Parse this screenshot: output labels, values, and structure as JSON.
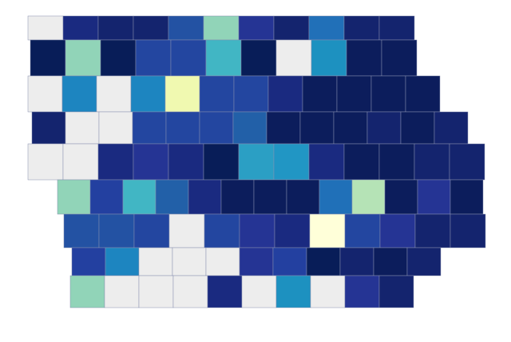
{
  "map": {
    "counties": {
      "rows": [
        [
          "#ededed",
          "#1a2a80",
          "#14246e",
          "#14246e",
          "#2352a3",
          "#91d4b8",
          "#253494",
          "#14246e",
          "#2170b8",
          "#14246e",
          "#14246e"
        ],
        [
          "#081d58",
          "#91d4b8",
          "#081d58",
          "#2346a0",
          "#2346a0",
          "#41b6c4",
          "#081d58",
          "#ededed",
          "#1d91c0",
          "#0c1d5c",
          "#0c1d5c"
        ],
        [
          "#ededed",
          "#1d85c0",
          "#ededed",
          "#1d85c0",
          "#f0f9b0",
          "#2346a0",
          "#2346a0",
          "#1a2a80",
          "#0c1d5c",
          "#0c1d5c",
          "#0c1d5c",
          "#0c1d5c"
        ],
        [
          "#14246e",
          "#ededed",
          "#ededed",
          "#2346a0",
          "#2346a0",
          "#2346a0",
          "#2260a8",
          "#0c1d5c",
          "#0c1d5c",
          "#0c1d5c",
          "#14246e",
          "#0c1d5c",
          "#14246e"
        ],
        [
          "#ededed",
          "#ededed",
          "#1a2a80",
          "#253494",
          "#1a2a80",
          "#081d58",
          "#2b9fc4",
          "#2196c4",
          "#1a2a80",
          "#0c1d5c",
          "#0c1d5c",
          "#14246e",
          "#14246e"
        ],
        [
          "#91d4b8",
          "#2340a0",
          "#41b6c4",
          "#2260a8",
          "#1a2a80",
          "#0c1d5c",
          "#0c1d5c",
          "#0c1d5c",
          "#2070b8",
          "#b5e3b6",
          "#0c1d5c",
          "#253494",
          "#0c1d5c"
        ],
        [
          "#2352a3",
          "#2352a3",
          "#2346a0",
          "#ededed",
          "#2346a0",
          "#253494",
          "#1a2a80",
          "#ffffd9",
          "#2346a0",
          "#253494",
          "#14246e",
          "#14246e"
        ],
        [
          "#2340a0",
          "#1d85c0",
          "#ededed",
          "#ededed",
          "#ededed",
          "#253494",
          "#2340a0",
          "#081d58",
          "#14246e",
          "#0c1d5c",
          "#14246e"
        ],
        [
          "#91d4b8",
          "#ededed",
          "#ededed",
          "#ededed",
          "#1a2a80",
          "#ededed",
          "#1d91c0",
          "#ededed",
          "#253494",
          "#14246e"
        ]
      ]
    }
  }
}
